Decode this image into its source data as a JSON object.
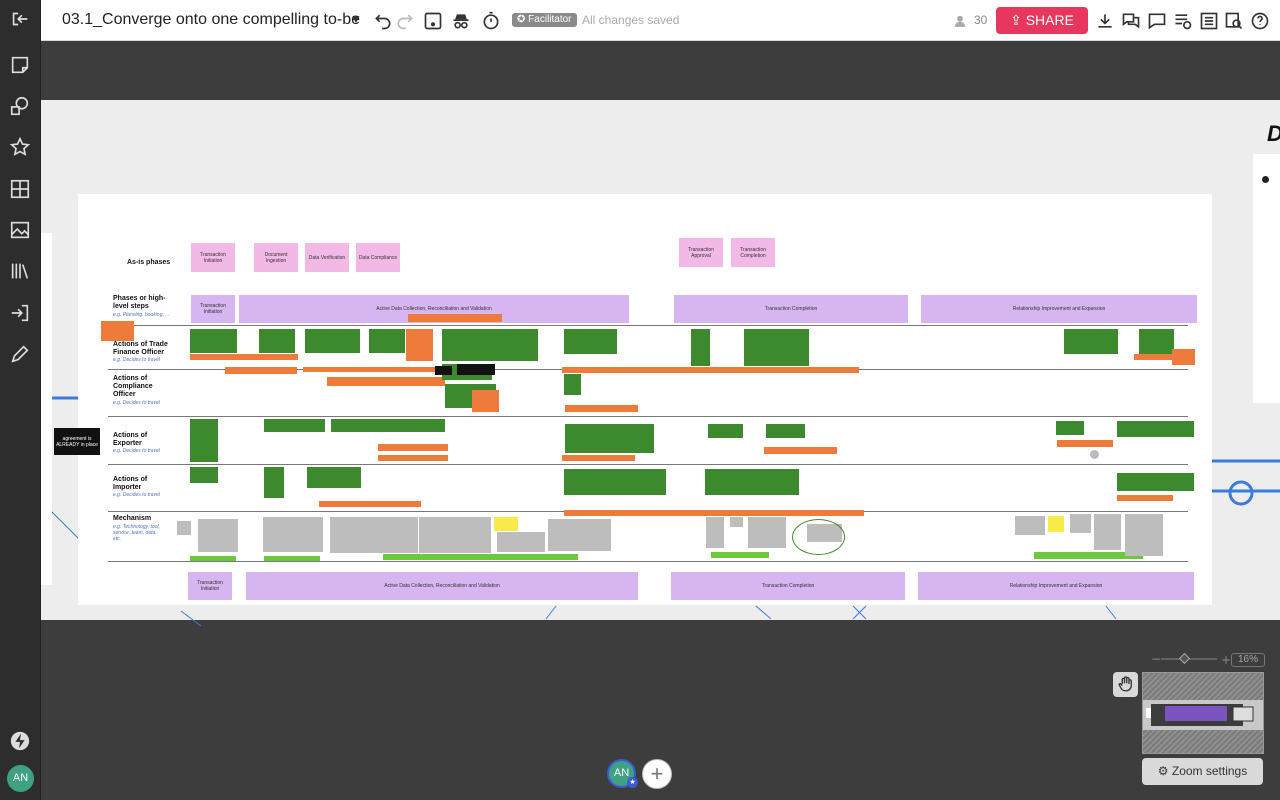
{
  "board": {
    "title": "03.1_Converge onto one compelling to-be"
  },
  "toolbar": {
    "facilitator_label": "Facilitator",
    "save_status": "All changes saved",
    "user_count": "30",
    "share_label": "SHARE"
  },
  "user": {
    "initials": "AN"
  },
  "canvas": {
    "row_labels": {
      "as_is": "As-is phases",
      "phases": "Phases or high-level steps",
      "phases_sub": "e.g. Planning, booking, ...",
      "trade": "Actions of Trade Finance Officer",
      "trade_sub": "e.g. Decides to travel",
      "compliance": "Actions of Compliance Officer",
      "compliance_sub": "e.g. Decides to travel",
      "exporter": "Actions of Exporter",
      "exporter_sub": "e.g. Decides to travel",
      "importer": "Actions of Importer",
      "importer_sub": "e.g. Decides to travel",
      "mechanism": "Mechanism",
      "mechanism_sub": "e.g. Technology, tool, service, team, data, etc."
    },
    "as_is_phases": [
      "Transaction Initiation",
      "Document Ingestion",
      "Data Verification",
      "Data Compliance",
      "Transaction Approval",
      "Transaction Completion"
    ],
    "top_phases": [
      "Transaction Initiation",
      "Active Data Collection, Reconciliation and Validation",
      "Transaction Completion",
      "Relationship Improvement and Expansion"
    ],
    "bottom_phases": [
      "Transaction Initiation",
      "Active Data Collection, Reconciliation and Validation",
      "Transaction Completion",
      "Relationship Improvement and Expansion"
    ],
    "agreement_note": "agreement is ALREADY in place"
  },
  "zoom": {
    "percent": "16%",
    "settings_label": "Zoom settings"
  }
}
